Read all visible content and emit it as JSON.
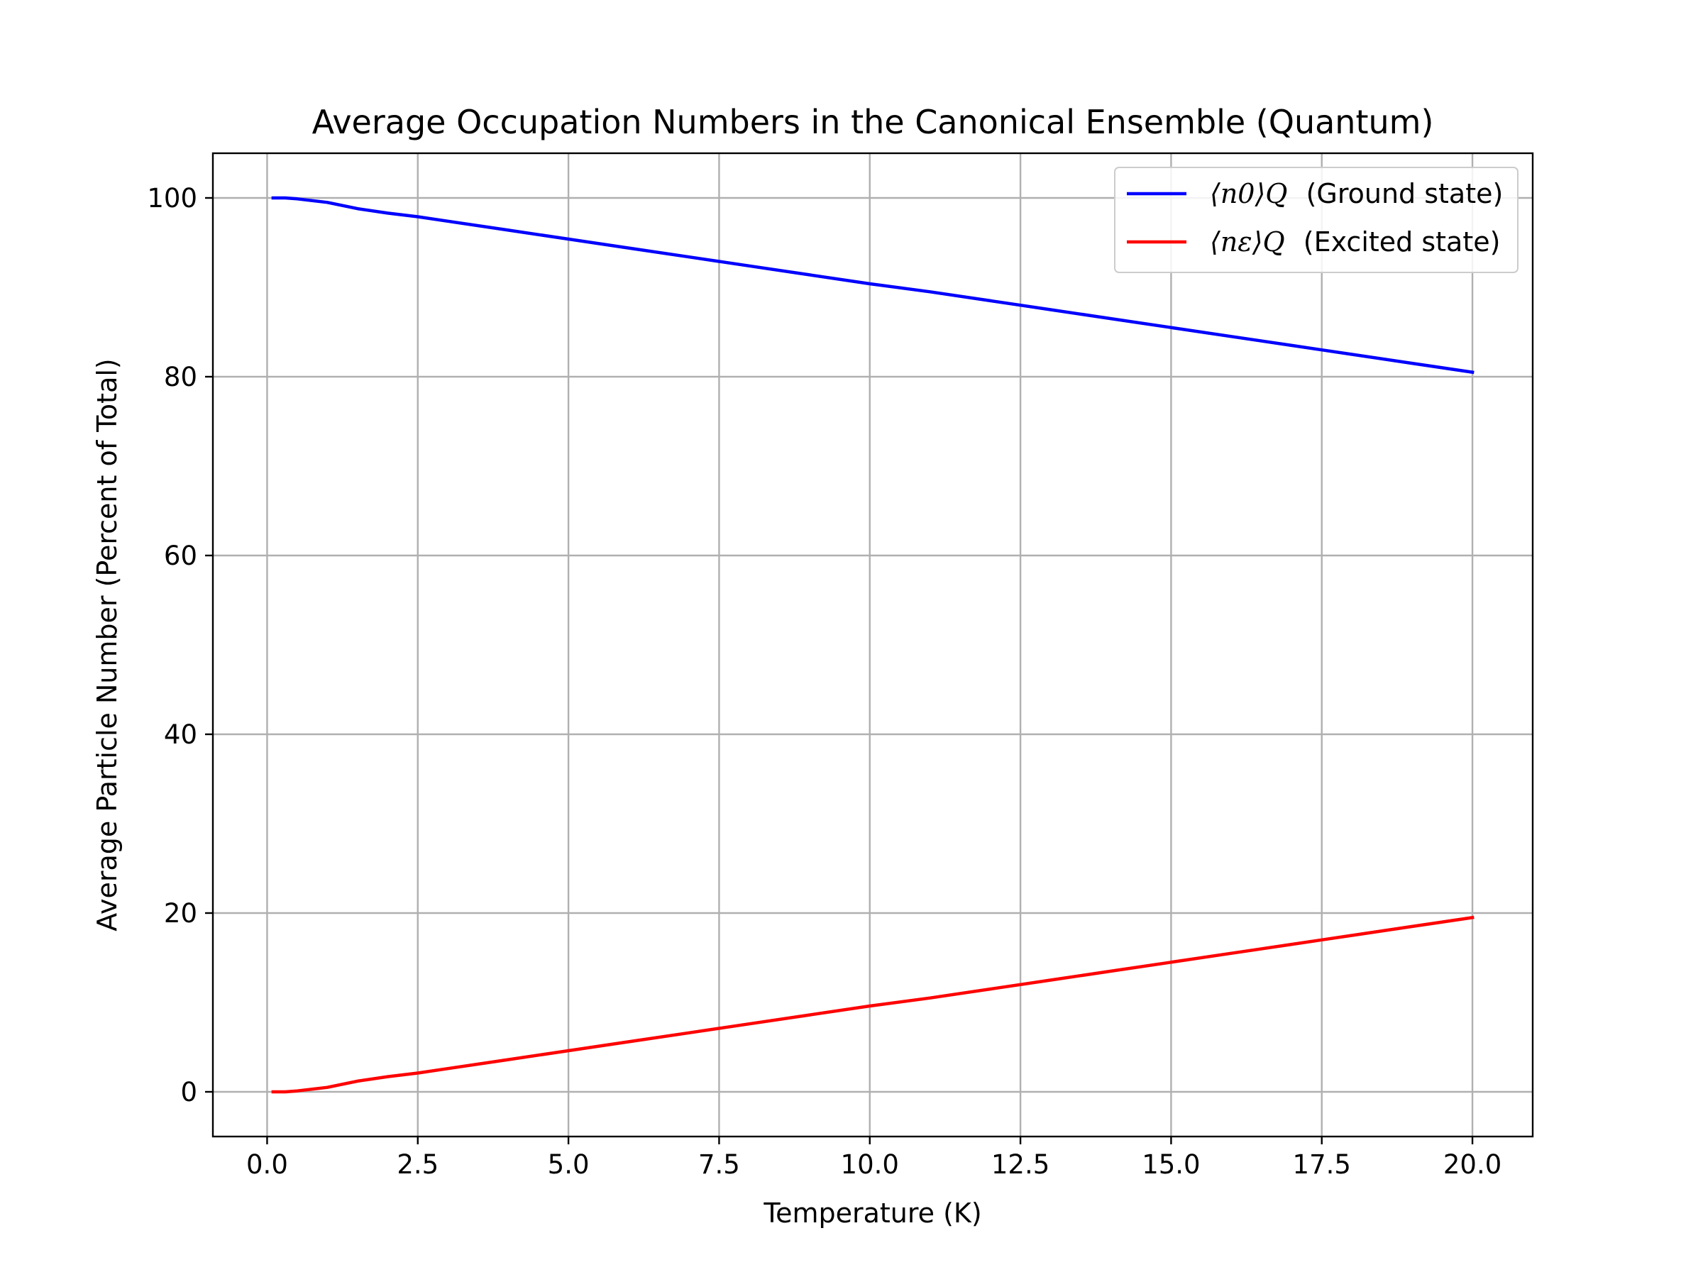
{
  "chart_data": {
    "type": "line",
    "title": "Average Occupation Numbers in the Canonical Ensemble (Quantum)",
    "xlabel": "Temperature (K)",
    "ylabel": "Average Particle Number (Percent of Total)",
    "xlim": [
      -0.9,
      21.0
    ],
    "ylim": [
      -5,
      105
    ],
    "xticks": [
      0.0,
      2.5,
      5.0,
      7.5,
      10.0,
      12.5,
      15.0,
      17.5,
      20.0
    ],
    "xtick_labels": [
      "0.0",
      "2.5",
      "5.0",
      "7.5",
      "10.0",
      "12.5",
      "15.0",
      "17.5",
      "20.0"
    ],
    "yticks": [
      0,
      20,
      40,
      60,
      80,
      100
    ],
    "ytick_labels": [
      "0",
      "20",
      "40",
      "60",
      "80",
      "100"
    ],
    "grid": true,
    "legend_position": "upper-right",
    "x": [
      0.1,
      0.3,
      0.5,
      0.75,
      1.0,
      1.5,
      2.0,
      2.5,
      3.0,
      4.0,
      5.0,
      6.0,
      7.0,
      7.5,
      8.0,
      9.0,
      10.0,
      11.0,
      12.0,
      12.5,
      13.0,
      14.0,
      15.0,
      16.0,
      17.0,
      17.5,
      18.0,
      19.0,
      20.0
    ],
    "series": [
      {
        "name": "Ground state",
        "legend_math": "⟨n0⟩Q",
        "legend_text": "(Ground state)",
        "color": "#0000ff",
        "values": [
          100.0,
          100.0,
          99.9,
          99.7,
          99.5,
          98.8,
          98.3,
          97.9,
          97.4,
          96.4,
          95.4,
          94.4,
          93.4,
          92.9,
          92.4,
          91.4,
          90.4,
          89.5,
          88.5,
          88.0,
          87.5,
          86.5,
          85.5,
          84.5,
          83.5,
          83.0,
          82.5,
          81.5,
          80.5
        ]
      },
      {
        "name": "Excited state",
        "legend_math": "⟨nε⟩Q",
        "legend_text": "(Excited state)",
        "color": "#ff0000",
        "values": [
          0.0,
          0.0,
          0.1,
          0.3,
          0.5,
          1.2,
          1.7,
          2.1,
          2.6,
          3.6,
          4.6,
          5.6,
          6.6,
          7.1,
          7.6,
          8.6,
          9.6,
          10.5,
          11.5,
          12.0,
          12.5,
          13.5,
          14.5,
          15.5,
          16.5,
          17.0,
          17.5,
          18.5,
          19.5
        ]
      }
    ]
  }
}
